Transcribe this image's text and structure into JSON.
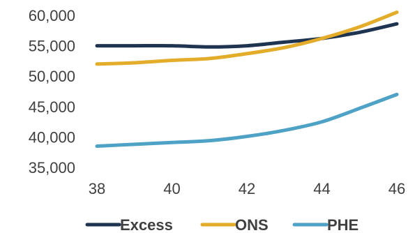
{
  "chart_data": {
    "type": "line",
    "title": "",
    "xlabel": "",
    "ylabel": "",
    "x": [
      38,
      39,
      40,
      41,
      42,
      43,
      44,
      45,
      46
    ],
    "xticks": [
      38,
      40,
      42,
      44,
      46
    ],
    "xtick_labels": [
      "38",
      "40",
      "42",
      "44",
      "46"
    ],
    "xlim": [
      38,
      46
    ],
    "yticks": [
      35000,
      40000,
      45000,
      50000,
      55000,
      60000
    ],
    "ytick_labels": [
      "35,000",
      "40,000",
      "45,000",
      "50,000",
      "55,000",
      "60,000"
    ],
    "ylim": [
      35000,
      60000
    ],
    "grid": false,
    "legend": "bottom",
    "series": [
      {
        "name": "Excess",
        "color": "#1f3450",
        "values": [
          55000,
          55000,
          55000,
          54800,
          55000,
          55600,
          56200,
          57200,
          58600
        ]
      },
      {
        "name": "ONS",
        "color": "#e3ac2a",
        "values": [
          52000,
          52200,
          52600,
          52900,
          53700,
          54700,
          56200,
          58100,
          60500
        ]
      },
      {
        "name": "PHE",
        "color": "#4ea2c6",
        "values": [
          38500,
          38800,
          39100,
          39400,
          40100,
          41100,
          42500,
          44700,
          47000
        ]
      }
    ]
  }
}
